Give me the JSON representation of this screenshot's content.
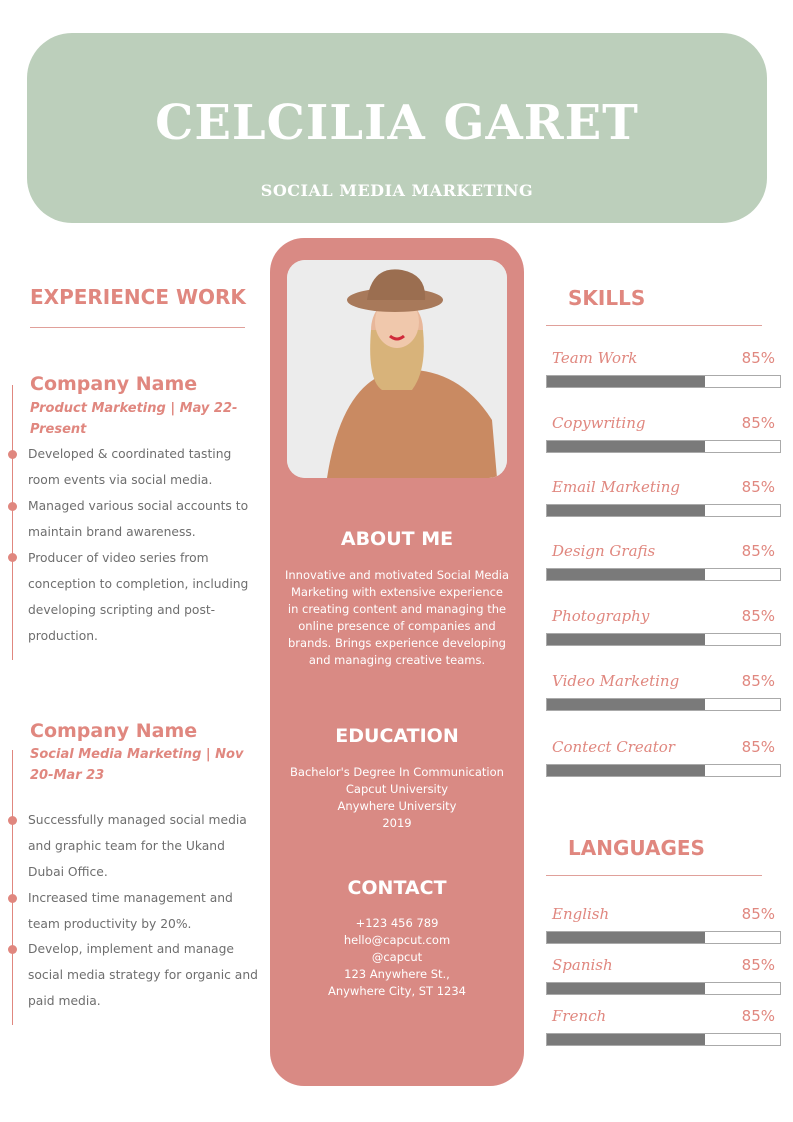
{
  "header": {
    "name": "CELCILIA GARET",
    "role": "SOCIAL MEDIA MARKETING"
  },
  "experience": {
    "title": "EXPERIENCE WORK",
    "jobs": [
      {
        "company": "Company Name",
        "subtitle": "Product Marketing | May 22-Present",
        "bullets": [
          "Developed & coordinated tasting room events via social media.",
          "Managed various social accounts to maintain brand awareness.",
          "Producer of video series from conception to completion, including developing scripting and post-production."
        ]
      },
      {
        "company": "Company Name",
        "subtitle": "Social Media Marketing | Nov 20-Mar 23",
        "bullets": [
          "Successfully managed social media and graphic team for the Ukand Dubai Office.",
          "Increased time management and team productivity by 20%.",
          "Develop, implement and manage social media strategy for organic and paid media."
        ]
      }
    ]
  },
  "about": {
    "title": "ABOUT ME",
    "text": "Innovative and motivated Social Media Marketing with extensive experience in creating content and managing the online presence of companies and brands. Brings experience developing and managing creative teams."
  },
  "education": {
    "title": "EDUCATION",
    "lines": [
      "Bachelor's Degree In Communication",
      "Capcut University",
      "Anywhere University",
      "2019"
    ]
  },
  "contact": {
    "title": "CONTACT",
    "lines": [
      "+123  456 789",
      "hello@capcut.com",
      "@capcut",
      "123 Anywhere St.,",
      "Anywhere City, ST 1234"
    ]
  },
  "skills": {
    "title": "SKILLS",
    "items": [
      {
        "label": "Team Work",
        "percent": "85%",
        "level": 0.68
      },
      {
        "label": "Copywriting",
        "percent": "85%",
        "level": 0.68
      },
      {
        "label": "Email Marketing",
        "percent": "85%",
        "level": 0.68
      },
      {
        "label": "Design Grafis",
        "percent": "85%",
        "level": 0.68
      },
      {
        "label": "Photography",
        "percent": "85%",
        "level": 0.68
      },
      {
        "label": "Video Marketing",
        "percent": "85%",
        "level": 0.68
      },
      {
        "label": "Contect Creator",
        "percent": "85%",
        "level": 0.68
      }
    ]
  },
  "languages": {
    "title": "LANGUAGES",
    "items": [
      {
        "label": "English",
        "percent": "85%",
        "level": 0.68
      },
      {
        "label": "Spanish",
        "percent": "85%",
        "level": 0.68
      },
      {
        "label": "French",
        "percent": "85%",
        "level": 0.68
      }
    ]
  },
  "colors": {
    "header": "#bccfbb",
    "accent": "#e0877f",
    "panel": "#d98a84",
    "bar": "#7a7a7a"
  }
}
